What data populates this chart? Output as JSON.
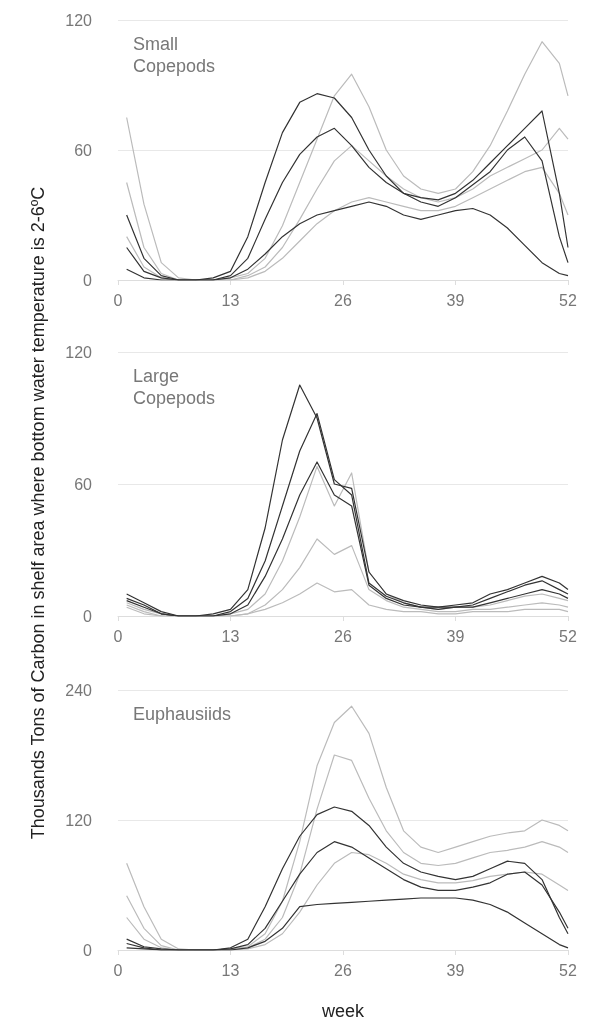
{
  "chart_data": [
    {
      "type": "line",
      "title": "Small Copepods",
      "x": [
        1,
        3,
        5,
        7,
        9,
        11,
        13,
        15,
        17,
        19,
        21,
        23,
        25,
        27,
        29,
        31,
        33,
        35,
        37,
        39,
        41,
        43,
        45,
        47,
        49,
        51,
        52
      ],
      "xlim": [
        0,
        52
      ],
      "xticks": [
        0,
        13,
        26,
        39,
        52
      ],
      "ylim": [
        0,
        120
      ],
      "yticks": [
        0,
        60,
        120
      ],
      "grid": "y",
      "series": [
        {
          "color": "#333333",
          "values": [
            30,
            10,
            2,
            0,
            0,
            1,
            4,
            20,
            45,
            68,
            82,
            86,
            84,
            75,
            60,
            48,
            40,
            36,
            34,
            38,
            44,
            50,
            60,
            66,
            55,
            20,
            8
          ]
        },
        {
          "color": "#333333",
          "values": [
            15,
            4,
            1,
            0,
            0,
            0,
            2,
            10,
            28,
            45,
            58,
            66,
            70,
            62,
            52,
            45,
            40,
            38,
            37,
            40,
            46,
            54,
            62,
            70,
            78,
            40,
            15
          ]
        },
        {
          "color": "#333333",
          "values": [
            5,
            1,
            0,
            0,
            0,
            0,
            1,
            5,
            12,
            20,
            26,
            30,
            32,
            34,
            36,
            34,
            30,
            28,
            30,
            32,
            33,
            30,
            24,
            16,
            8,
            3,
            2
          ]
        },
        {
          "color": "#bbbbbb",
          "values": [
            75,
            35,
            8,
            1,
            0,
            0,
            1,
            3,
            10,
            25,
            45,
            65,
            85,
            95,
            80,
            60,
            48,
            42,
            40,
            42,
            50,
            62,
            78,
            95,
            110,
            100,
            85
          ]
        },
        {
          "color": "#bbbbbb",
          "values": [
            45,
            15,
            3,
            0,
            0,
            0,
            0,
            2,
            6,
            15,
            28,
            42,
            55,
            62,
            55,
            48,
            42,
            38,
            36,
            38,
            42,
            48,
            52,
            56,
            60,
            70,
            65
          ]
        },
        {
          "color": "#bbbbbb",
          "values": [
            20,
            6,
            1,
            0,
            0,
            0,
            0,
            1,
            4,
            10,
            18,
            26,
            32,
            36,
            38,
            36,
            34,
            32,
            32,
            34,
            38,
            42,
            46,
            50,
            52,
            40,
            30
          ]
        }
      ]
    },
    {
      "type": "line",
      "title": "Large Copepods",
      "ylabel": "Thousands Tons of Carbon in shelf area where bottom water temperature is 2-6ºC",
      "x": [
        1,
        3,
        5,
        7,
        9,
        11,
        13,
        15,
        17,
        19,
        21,
        23,
        25,
        27,
        29,
        31,
        33,
        35,
        37,
        39,
        41,
        43,
        45,
        47,
        49,
        51,
        52
      ],
      "xlim": [
        0,
        52
      ],
      "xticks": [
        0,
        13,
        26,
        39,
        52
      ],
      "ylim": [
        0,
        120
      ],
      "yticks": [
        0,
        60,
        120
      ],
      "grid": "y",
      "series": [
        {
          "color": "#333333",
          "values": [
            10,
            6,
            2,
            0,
            0,
            1,
            3,
            12,
            40,
            80,
            105,
            90,
            60,
            58,
            20,
            10,
            7,
            5,
            4,
            5,
            6,
            10,
            12,
            15,
            18,
            15,
            12
          ]
        },
        {
          "color": "#333333",
          "values": [
            8,
            5,
            1,
            0,
            0,
            0,
            2,
            8,
            25,
            50,
            75,
            92,
            62,
            55,
            15,
            9,
            6,
            4,
            4,
            4,
            5,
            8,
            11,
            14,
            16,
            12,
            10
          ]
        },
        {
          "color": "#333333",
          "values": [
            7,
            4,
            1,
            0,
            0,
            0,
            1,
            5,
            18,
            35,
            55,
            70,
            55,
            50,
            14,
            8,
            5,
            4,
            3,
            4,
            4,
            6,
            8,
            10,
            12,
            10,
            8
          ]
        },
        {
          "color": "#bbbbbb",
          "values": [
            6,
            3,
            1,
            0,
            0,
            0,
            1,
            3,
            10,
            25,
            45,
            68,
            50,
            65,
            20,
            10,
            6,
            4,
            3,
            4,
            4,
            5,
            7,
            9,
            10,
            8,
            7
          ]
        },
        {
          "color": "#bbbbbb",
          "values": [
            5,
            2,
            0,
            0,
            0,
            0,
            0,
            1,
            5,
            12,
            22,
            35,
            28,
            32,
            12,
            7,
            4,
            3,
            2,
            2,
            3,
            3,
            4,
            5,
            6,
            5,
            4
          ]
        },
        {
          "color": "#bbbbbb",
          "values": [
            4,
            1,
            0,
            0,
            0,
            0,
            0,
            1,
            3,
            6,
            10,
            15,
            11,
            12,
            5,
            3,
            2,
            2,
            1,
            1,
            2,
            2,
            2,
            3,
            3,
            3,
            2
          ]
        }
      ]
    },
    {
      "type": "line",
      "title": "Euphausiids",
      "xlabel": "week",
      "x": [
        1,
        3,
        5,
        7,
        9,
        11,
        13,
        15,
        17,
        19,
        21,
        23,
        25,
        27,
        29,
        31,
        33,
        35,
        37,
        39,
        41,
        43,
        45,
        47,
        49,
        51,
        52
      ],
      "xlim": [
        0,
        52
      ],
      "xticks": [
        0,
        13,
        26,
        39,
        52
      ],
      "ylim": [
        0,
        240
      ],
      "yticks": [
        0,
        120,
        240
      ],
      "grid": "y",
      "series": [
        {
          "color": "#333333",
          "values": [
            10,
            3,
            1,
            0,
            0,
            0,
            2,
            10,
            40,
            75,
            105,
            125,
            132,
            128,
            115,
            95,
            80,
            72,
            68,
            65,
            68,
            75,
            82,
            80,
            65,
            30,
            15
          ]
        },
        {
          "color": "#333333",
          "values": [
            6,
            2,
            0,
            0,
            0,
            0,
            1,
            5,
            20,
            45,
            70,
            90,
            100,
            95,
            85,
            75,
            65,
            58,
            55,
            55,
            58,
            62,
            70,
            72,
            60,
            35,
            20
          ]
        },
        {
          "color": "#333333",
          "values": [
            2,
            1,
            0,
            0,
            0,
            0,
            0,
            2,
            8,
            20,
            40,
            42,
            43,
            44,
            45,
            46,
            47,
            48,
            48,
            48,
            46,
            42,
            35,
            25,
            15,
            5,
            2
          ]
        },
        {
          "color": "#bbbbbb",
          "values": [
            80,
            40,
            10,
            1,
            0,
            0,
            1,
            3,
            15,
            45,
            100,
            170,
            210,
            225,
            200,
            150,
            110,
            95,
            90,
            95,
            100,
            105,
            108,
            110,
            120,
            115,
            110
          ]
        },
        {
          "color": "#bbbbbb",
          "values": [
            50,
            20,
            4,
            0,
            0,
            0,
            0,
            2,
            10,
            30,
            70,
            130,
            180,
            175,
            140,
            110,
            90,
            80,
            78,
            80,
            85,
            90,
            92,
            95,
            100,
            95,
            90
          ]
        },
        {
          "color": "#bbbbbb",
          "values": [
            30,
            10,
            2,
            0,
            0,
            0,
            0,
            1,
            5,
            15,
            35,
            60,
            80,
            90,
            88,
            80,
            70,
            65,
            62,
            62,
            64,
            68,
            70,
            72,
            70,
            60,
            55
          ]
        }
      ]
    }
  ]
}
